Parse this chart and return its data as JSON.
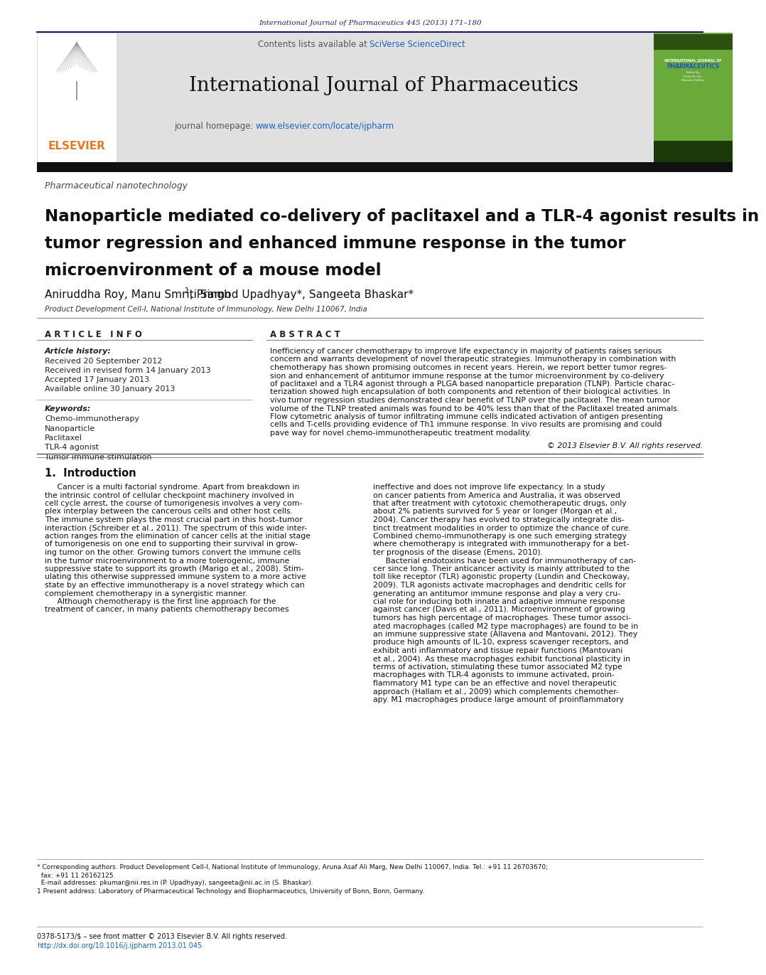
{
  "page_bg": "#ffffff",
  "header_url": "International Journal of Pharmaceutics 445 (2013) 171–180",
  "header_url_color": "#1a237e",
  "journal_header_bg": "#e0e0e0",
  "journal_name": "International Journal of Pharmaceutics",
  "contents_plain": "Contents lists available at ",
  "contents_link": "SciVerse ScienceDirect",
  "contents_link_color": "#1565c0",
  "journal_homepage_plain": "journal homepage: ",
  "journal_homepage_link": "www.elsevier.com/locate/ijpharm",
  "journal_homepage_link_color": "#1565c0",
  "dark_bar_color": "#111111",
  "section_tag": "Pharmaceutical nanotechnology",
  "section_tag_color": "#444444",
  "article_title_line1": "Nanoparticle mediated co-delivery of paclitaxel and a TLR-4 agonist results in",
  "article_title_line2": "tumor regression and enhanced immune response in the tumor",
  "article_title_line3": "microenvironment of a mouse model",
  "authors_part1": "Aniruddha Roy, Manu Smriti Singh",
  "authors_super": "1",
  "authors_part2": ", Pramod Upadhyay*, Sangeeta Bhaskar*",
  "affiliation": "Product Development Cell-I, National Institute of Immunology, New Delhi 110067, India",
  "article_info_header": "A R T I C L E   I N F O",
  "abstract_header": "A B S T R A C T",
  "article_history_label": "Article history:",
  "received1": "Received 20 September 2012",
  "received2": "Received in revised form 14 January 2013",
  "accepted": "Accepted 17 January 2013",
  "available": "Available online 30 January 2013",
  "keywords_label": "Keywords:",
  "keywords": [
    "Chemo-immunotherapy",
    "Nanoparticle",
    "Paclitaxel",
    "TLR-4 agonist",
    "Tumor immune-stimulation"
  ],
  "abstract_lines": [
    "Inefficiency of cancer chemotherapy to improve life expectancy in majority of patients raises serious",
    "concern and warrants development of novel therapeutic strategies. Immunotherapy in combination with",
    "chemotherapy has shown promising outcomes in recent years. Herein, we report better tumor regres-",
    "sion and enhancement of antitumor immune response at the tumor microenvironment by co-delivery",
    "of paclitaxel and a TLR4 agonist through a PLGA based nanoparticle preparation (TLNP). Particle charac-",
    "terization showed high encapsulation of both components and retention of their biological activities. In",
    "vivo tumor regression studies demonstrated clear benefit of TLNP over the paclitaxel. The mean tumor",
    "volume of the TLNP treated animals was found to be 40% less than that of the Paclitaxel treated animals.",
    "Flow cytometric analysis of tumor infiltrating immune cells indicated activation of antigen presenting",
    "cells and T-cells providing evidence of Th1 immune response. In vivo results are promising and could",
    "pave way for novel chemo-immunotherapeutic treatment modality."
  ],
  "copyright": "© 2013 Elsevier B.V. All rights reserved.",
  "intro_header": "1.  Introduction",
  "intro_col1_lines": [
    "     Cancer is a multi factorial syndrome. Apart from breakdown in",
    "the intrinsic control of cellular checkpoint machinery involved in",
    "cell cycle arrest, the course of tumorigenesis involves a very com-",
    "plex interplay between the cancerous cells and other host cells.",
    "The immune system plays the most crucial part in this host–tumor",
    "interaction (Schreiber et al., 2011). The spectrum of this wide inter-",
    "action ranges from the elimination of cancer cells at the initial stage",
    "of tumorigenesis on one end to supporting their survival in grow-",
    "ing tumor on the other. Growing tumors convert the immune cells",
    "in the tumor microenvironment to a more tolerogenic, immune",
    "suppressive state to support its growth (Marigo et al., 2008). Stim-",
    "ulating this otherwise suppressed immune system to a more active",
    "state by an effective immunotherapy is a novel strategy which can",
    "complement chemotherapy in a synergistic manner.",
    "     Although chemotherapy is the first line approach for the",
    "treatment of cancer, in many patients chemotherapy becomes"
  ],
  "intro_col2_lines": [
    "ineffective and does not improve life expectancy. In a study",
    "on cancer patients from America and Australia, it was observed",
    "that after treatment with cytotoxic chemotherapeutic drugs, only",
    "about 2% patients survived for 5 year or longer (Morgan et al.,",
    "2004). Cancer therapy has evolved to strategically integrate dis-",
    "tinct treatment modalities in order to optimize the chance of cure.",
    "Combined chemo-immunotherapy is one such emerging strategy",
    "where chemotherapy is integrated with immunotherapy for a bet-",
    "ter prognosis of the disease (Emens, 2010).",
    "     Bacterial endotoxins have been used for immunotherapy of can-",
    "cer since long. Their anticancer activity is mainly attributed to the",
    "toll like receptor (TLR) agonistic property (Lundin and Checkoway,",
    "2009). TLR agonists activate macrophages and dendritic cells for",
    "generating an antitumor immune response and play a very cru-",
    "cial role for inducing both innate and adaptive immune response",
    "against cancer (Davis et al., 2011). Microenvironment of growing",
    "tumors has high percentage of macrophages. These tumor associ-",
    "ated macrophages (called M2 type macrophages) are found to be in",
    "an immune suppressive state (Allavena and Mantovani, 2012). They",
    "produce high amounts of IL-10, express scavenger receptors, and",
    "exhibit anti inflammatory and tissue repair functions (Mantovani",
    "et al., 2004). As these macrophages exhibit functional plasticity in",
    "terms of activation, stimulating these tumor associated M2 type",
    "macrophages with TLR-4 agonists to immune activated, proin-",
    "flammatory M1 type can be an effective and novel therapeutic",
    "approach (Hallam et al., 2009) which complements chemother-",
    "apy. M1 macrophages produce large amount of proinflammatory"
  ],
  "footer_lines": [
    "* Corresponding authors. Product Development Cell-I, National Institute of Immunology, Aruna Asaf Ali Marg, New Delhi 110067, India. Tel.: +91 11 26703670;",
    "  fax: +91 11 26162125.",
    "  E-mail addresses: pkumar@nii.res.in (P. Upadhyay), sangeeta@nii.ac.in (S. Bhaskar).",
    "1 Present address: Laboratory of Pharmaceutical Technology and Biopharmaceutics, University of Bonn, Bonn, Germany."
  ],
  "bottom_line1": "0378-5173/$ – see front matter © 2013 Elsevier B.V. All rights reserved.",
  "bottom_line2": "http://dx.doi.org/10.1016/j.ijpharm.2013.01.045",
  "elsevier_color": "#e87722",
  "cover_green": "#6aaa3a",
  "cover_dark": "#1a3a0a",
  "line_color": "#555555",
  "text_color": "#111111",
  "ref_color": "#1565c0"
}
